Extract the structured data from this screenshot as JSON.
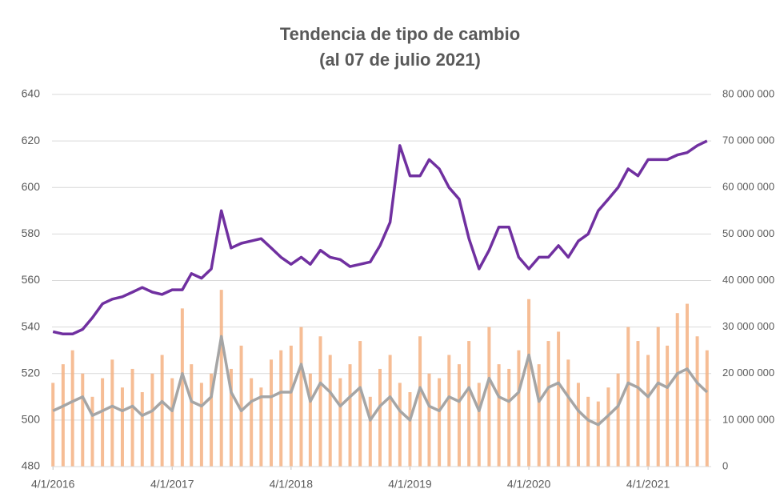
{
  "chart_data": {
    "type": "combo",
    "title": "Tendencia de tipo de cambio",
    "subtitle": "(al 07 de julio 2021)",
    "x": [
      "4/1/2016",
      "4/2/2016",
      "4/3/2016",
      "4/4/2016",
      "4/5/2016",
      "4/6/2016",
      "4/7/2016",
      "4/8/2016",
      "4/9/2016",
      "4/10/2016",
      "4/11/2016",
      "4/12/2016",
      "4/1/2017",
      "4/2/2017",
      "4/3/2017",
      "4/4/2017",
      "4/5/2017",
      "4/6/2017",
      "4/7/2017",
      "4/8/2017",
      "4/9/2017",
      "4/10/2017",
      "4/11/2017",
      "4/12/2017",
      "4/1/2018",
      "4/2/2018",
      "4/3/2018",
      "4/4/2018",
      "4/5/2018",
      "4/6/2018",
      "4/7/2018",
      "4/8/2018",
      "4/9/2018",
      "4/10/2018",
      "4/11/2018",
      "4/12/2018",
      "4/1/2019",
      "4/2/2019",
      "4/3/2019",
      "4/4/2019",
      "4/5/2019",
      "4/6/2019",
      "4/7/2019",
      "4/8/2019",
      "4/9/2019",
      "4/10/2019",
      "4/11/2019",
      "4/12/2019",
      "4/1/2020",
      "4/2/2020",
      "4/3/2020",
      "4/4/2020",
      "4/5/2020",
      "4/6/2020",
      "4/7/2020",
      "4/8/2020",
      "4/9/2020",
      "4/10/2020",
      "4/11/2020",
      "4/12/2020",
      "4/1/2021",
      "4/2/2021",
      "4/3/2021",
      "4/4/2021",
      "4/5/2021",
      "4/6/2021",
      "4/7/2021"
    ],
    "xlim": [
      "1/1/2016",
      "7/7/2021"
    ],
    "xticks": [
      "4/1/2016",
      "4/1/2017",
      "4/1/2018",
      "4/1/2019",
      "4/1/2020",
      "4/1/2021"
    ],
    "ylim": [
      480,
      640
    ],
    "yticks": [
      480,
      500,
      520,
      540,
      560,
      580,
      600,
      620,
      640
    ],
    "y2lim": [
      0,
      80000000
    ],
    "y2ticks": [
      0,
      {
        "value": 10000000,
        "label": "10 000 000"
      },
      {
        "value": 20000000,
        "label": "20 000 000"
      },
      {
        "value": 30000000,
        "label": "30 000 000"
      },
      {
        "value": 40000000,
        "label": "40 000 000"
      },
      {
        "value": 50000000,
        "label": "50 000 000"
      },
      {
        "value": 60000000,
        "label": "60 000 000"
      },
      {
        "value": 70000000,
        "label": "70 000 000"
      },
      {
        "value": 80000000,
        "label": "80 000 000"
      }
    ],
    "grid": true,
    "series": [
      {
        "type": "bar",
        "axis": "y2",
        "color": "#f4b183",
        "values": [
          18000000,
          22000000,
          25000000,
          20000000,
          15000000,
          19000000,
          23000000,
          17000000,
          21000000,
          16000000,
          20000000,
          24000000,
          19000000,
          34000000,
          22000000,
          18000000,
          20000000,
          38000000,
          21000000,
          26000000,
          19000000,
          17000000,
          23000000,
          25000000,
          26000000,
          30000000,
          20000000,
          28000000,
          24000000,
          19000000,
          22000000,
          27000000,
          15000000,
          21000000,
          24000000,
          18000000,
          16000000,
          28000000,
          20000000,
          19000000,
          24000000,
          22000000,
          27000000,
          18000000,
          30000000,
          22000000,
          21000000,
          25000000,
          36000000,
          22000000,
          27000000,
          29000000,
          23000000,
          18000000,
          15000000,
          14000000,
          17000000,
          20000000,
          30000000,
          27000000,
          24000000,
          30000000,
          26000000,
          33000000,
          35000000,
          28000000,
          25000000
        ]
      },
      {
        "type": "line",
        "axis": "y2",
        "color": "#a5a5a5",
        "values": [
          12000000,
          13000000,
          14000000,
          15000000,
          11000000,
          12000000,
          13000000,
          12000000,
          13000000,
          11000000,
          12000000,
          14000000,
          12000000,
          20000000,
          14000000,
          13000000,
          15000000,
          28000000,
          16000000,
          12000000,
          14000000,
          15000000,
          15000000,
          16000000,
          16000000,
          22000000,
          14000000,
          18000000,
          16000000,
          13000000,
          15000000,
          17000000,
          10000000,
          13000000,
          15000000,
          12000000,
          10000000,
          17000000,
          13000000,
          12000000,
          15000000,
          14000000,
          17000000,
          12000000,
          19000000,
          15000000,
          14000000,
          16000000,
          24000000,
          14000000,
          17000000,
          18000000,
          15000000,
          12000000,
          10000000,
          9000000,
          11000000,
          13000000,
          18000000,
          17000000,
          15000000,
          18000000,
          17000000,
          20000000,
          21000000,
          18000000,
          16000000
        ]
      },
      {
        "type": "line",
        "axis": "y",
        "color": "#7030a0",
        "values": [
          538,
          537,
          537,
          539,
          544,
          550,
          552,
          553,
          555,
          557,
          555,
          554,
          556,
          556,
          563,
          561,
          565,
          590,
          574,
          576,
          577,
          578,
          574,
          570,
          567,
          570,
          567,
          573,
          570,
          569,
          566,
          567,
          568,
          575,
          585,
          618,
          605,
          605,
          612,
          608,
          600,
          595,
          578,
          565,
          573,
          583,
          583,
          570,
          565,
          570,
          570,
          575,
          570,
          577,
          580,
          590,
          595,
          600,
          608,
          605,
          612,
          612,
          612,
          614,
          615,
          618,
          620
        ]
      }
    ]
  }
}
